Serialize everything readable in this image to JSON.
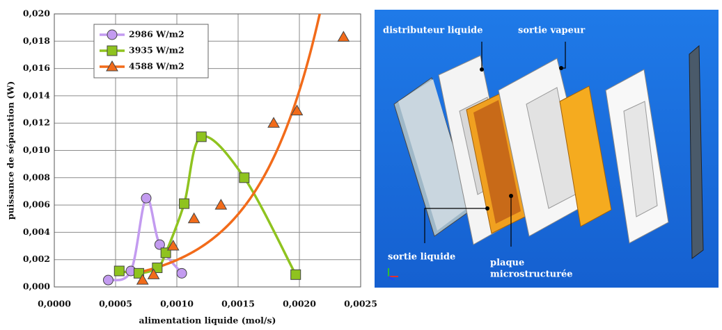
{
  "chart_data": {
    "type": "scatter",
    "x_label": "alimentation liquide (mol/s)",
    "y_label": "puissance de séparation (W)",
    "xlim": [
      0,
      0.0025
    ],
    "xticks": [
      {
        "value": 0,
        "label": "0,0000"
      },
      {
        "value": 0.0005,
        "label": "0,0005"
      },
      {
        "value": 0.001,
        "label": "0,0010"
      },
      {
        "value": 0.0015,
        "label": "0,0015"
      },
      {
        "value": 0.002,
        "label": "0,0020"
      },
      {
        "value": 0.0025,
        "label": "0,0025"
      }
    ],
    "ylim": [
      0,
      0.02
    ],
    "yticks": [
      {
        "value": 0,
        "label": "0,000"
      },
      {
        "value": 0.002,
        "label": "0,002"
      },
      {
        "value": 0.004,
        "label": "0,004"
      },
      {
        "value": 0.006,
        "label": "0,006"
      },
      {
        "value": 0.008,
        "label": "0,008"
      },
      {
        "value": 0.01,
        "label": "0,010"
      },
      {
        "value": 0.012,
        "label": "0,012"
      },
      {
        "value": 0.014,
        "label": "0,014"
      },
      {
        "value": 0.016,
        "label": "0,016"
      },
      {
        "value": 0.018,
        "label": "0,018"
      },
      {
        "value": 0.02,
        "label": "0,020"
      }
    ],
    "grid": true,
    "legend": "top-left",
    "series": [
      {
        "name": "2986 W/m2",
        "color": "#c39bf0",
        "marker": "circle",
        "line": "smooth",
        "x": [
          0.00044,
          0.000625,
          0.00075,
          0.00086,
          0.00104
        ],
        "values": [
          0.0005,
          0.00117,
          0.0065,
          0.0031,
          0.001
        ]
      },
      {
        "name": "3935 W/m2",
        "color": "#8fc31f",
        "marker": "square",
        "line": "smooth",
        "x": [
          0.00053,
          0.00069,
          0.00084,
          0.00091,
          0.00106,
          0.0012,
          0.00155,
          0.00197
        ],
        "values": [
          0.00117,
          0.001,
          0.0014,
          0.0025,
          0.0061,
          0.011,
          0.008,
          0.0009
        ]
      },
      {
        "name": "4588 W/m2",
        "color": "#f26b1a",
        "marker": "triangle",
        "line": "exponential-fit",
        "x": [
          0.00072,
          0.00081,
          0.00097,
          0.00114,
          0.00136,
          0.00179,
          0.00198,
          0.00236
        ],
        "values": [
          0.0005,
          0.0009,
          0.003,
          0.005,
          0.006,
          0.012,
          0.0129,
          0.0183
        ]
      }
    ]
  },
  "image": {
    "labels": [
      "distributeur liquide",
      "sortie vapeur",
      "sortie liquide",
      "plaque\nmicrostructurée"
    ]
  }
}
